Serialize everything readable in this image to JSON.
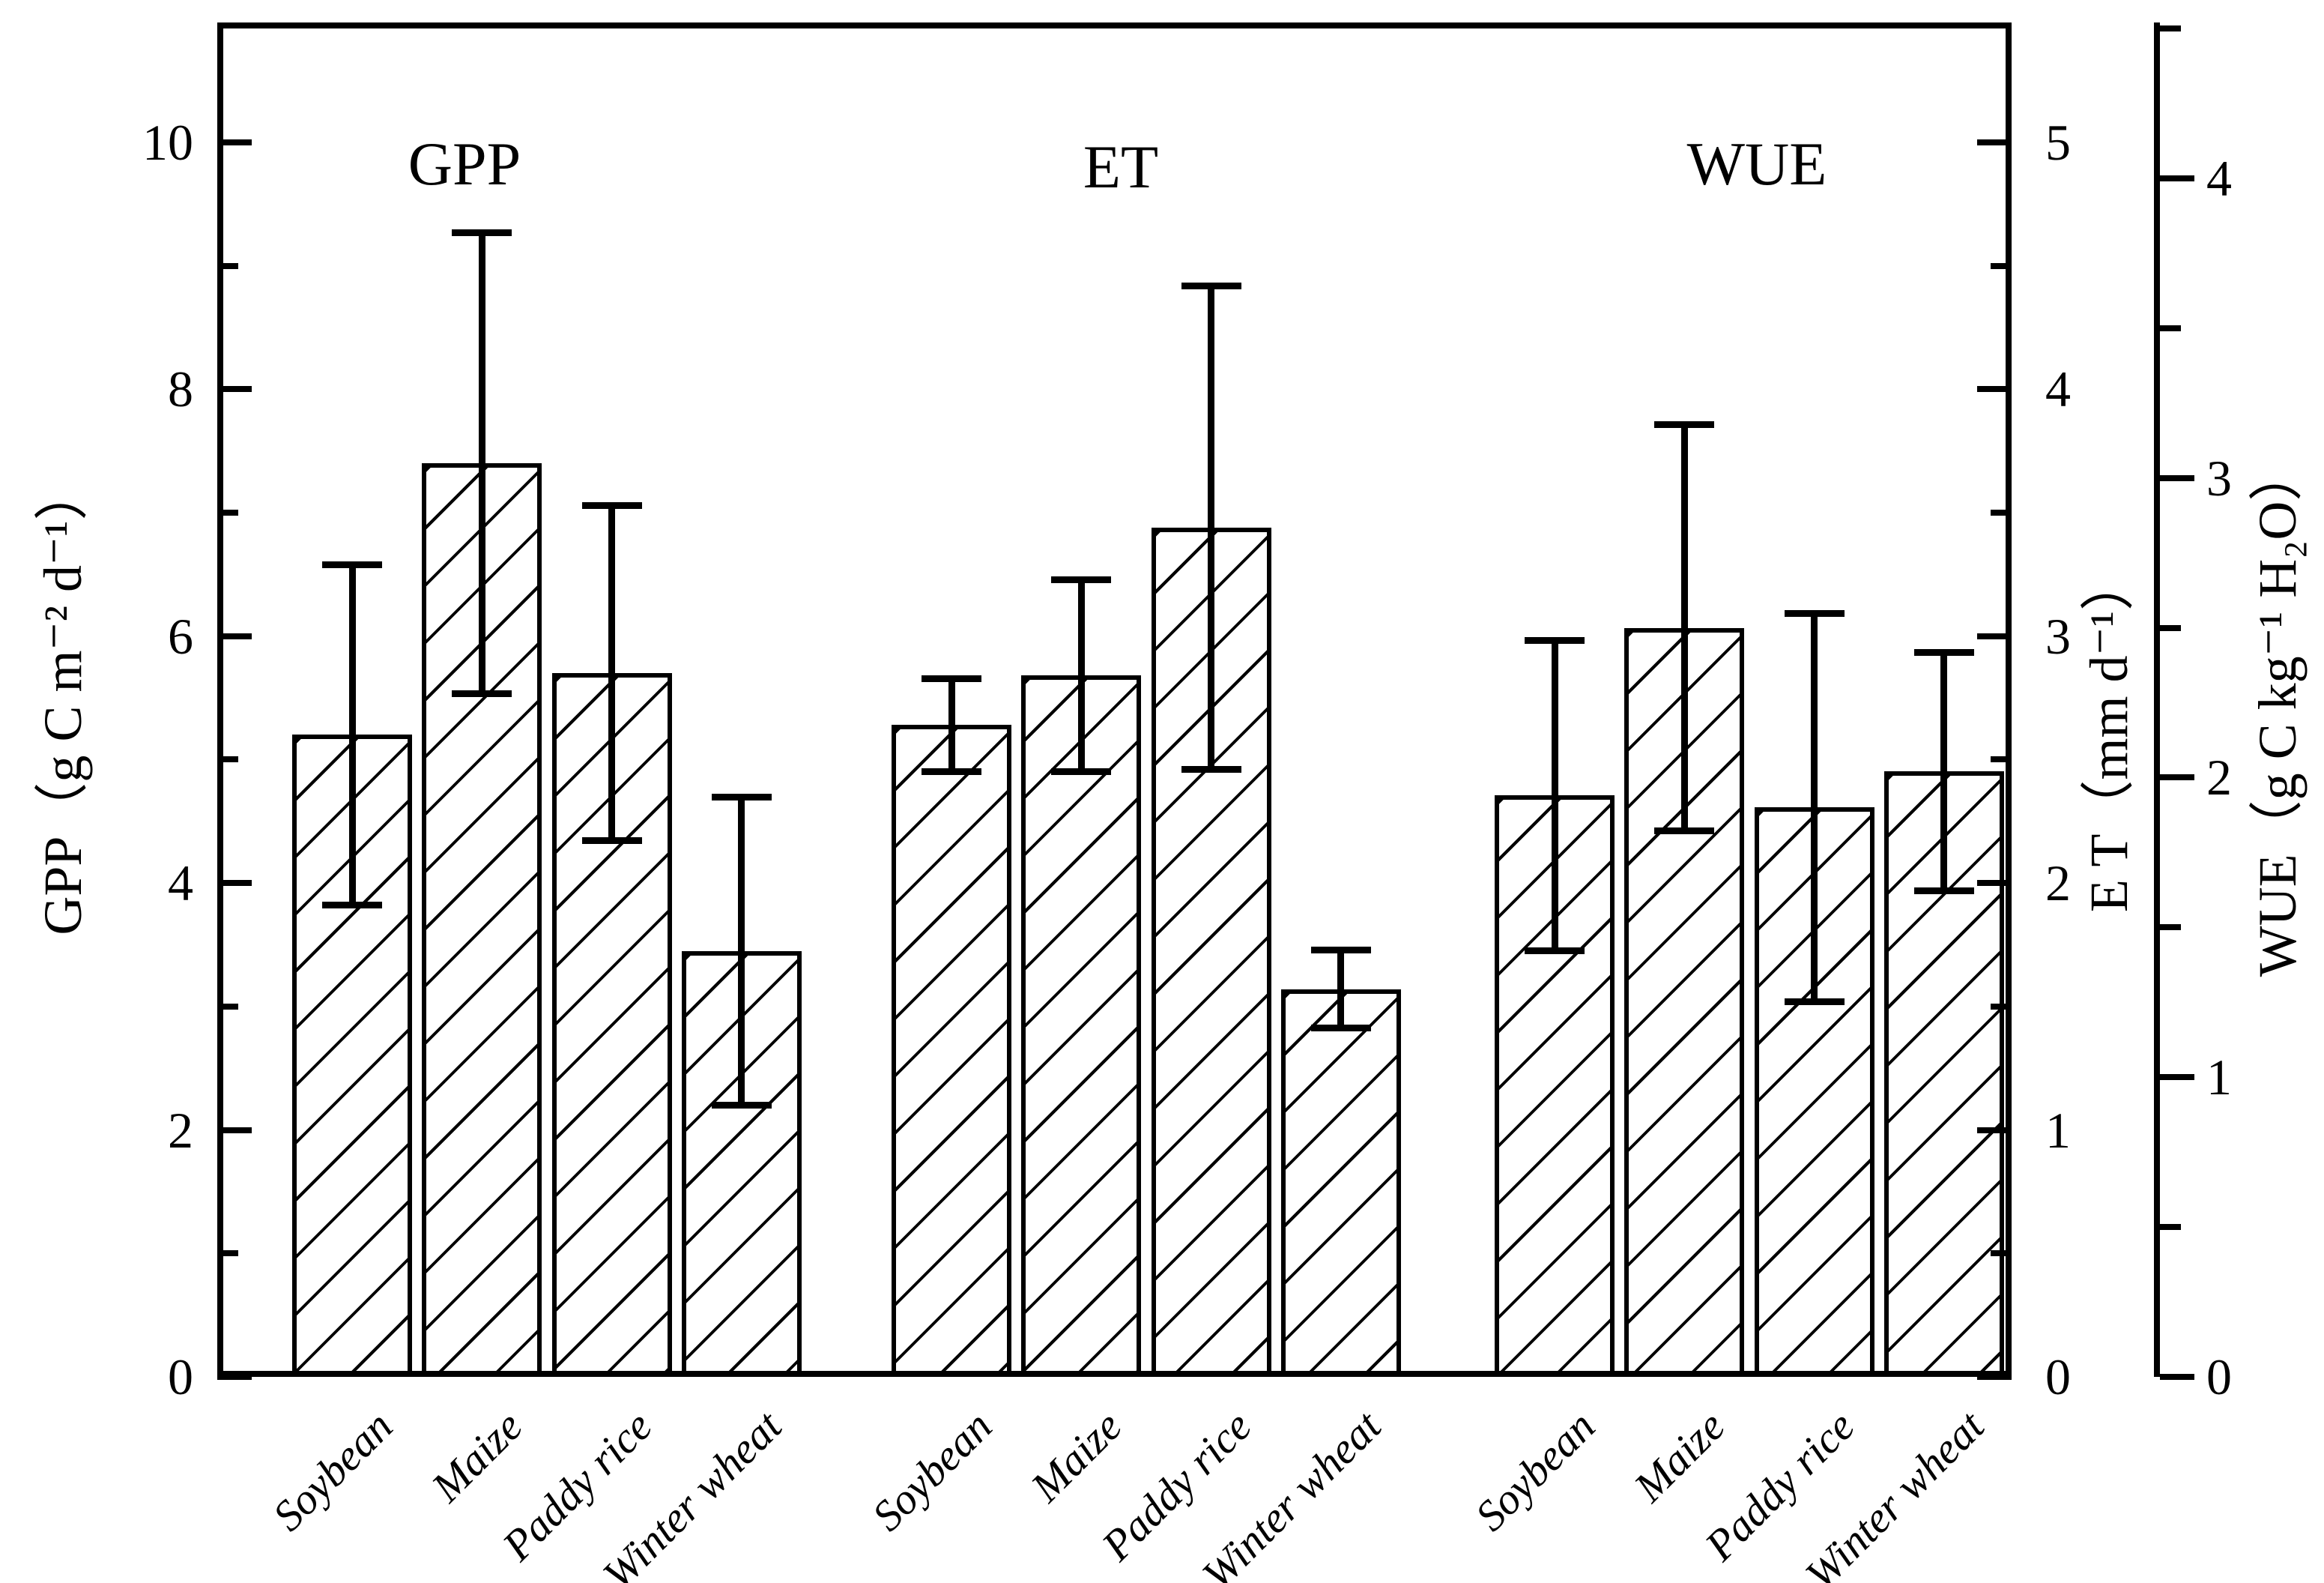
{
  "chart_data": {
    "type": "bar",
    "title": "",
    "categories": [
      "Soybean",
      "Maize",
      "Paddy rice",
      "Winter wheat"
    ],
    "groups": [
      {
        "name": "GPP",
        "axis": "left",
        "values": [
          5.2,
          7.4,
          5.7,
          3.45
        ],
        "errors": [
          1.38,
          1.87,
          1.36,
          1.25
        ]
      },
      {
        "name": "ET",
        "axis": "right_inner",
        "values": [
          2.64,
          2.84,
          3.44,
          1.57
        ],
        "errors": [
          0.19,
          0.39,
          0.98,
          0.16
        ]
      },
      {
        "name": "WUE",
        "axis": "right_outer",
        "values": [
          1.94,
          2.5,
          1.9,
          2.02
        ],
        "errors": [
          0.52,
          0.68,
          0.65,
          0.4
        ]
      }
    ],
    "axes": {
      "left": {
        "label": "GPP（g C m⁻² d⁻¹）",
        "min": 0,
        "max": 10.97,
        "major_ticks": [
          0,
          2,
          4,
          6,
          8,
          10
        ],
        "tick_labels": [
          "0",
          "2",
          "4",
          "6",
          "8",
          "10"
        ],
        "minor_ticks": [
          1,
          3,
          5,
          7,
          9
        ]
      },
      "right_inner": {
        "label": "E T（mm d⁻¹）",
        "min": 0,
        "max": 5.485,
        "major_ticks": [
          0,
          1,
          2,
          3,
          4,
          5
        ],
        "tick_labels": [
          "0",
          "1",
          "2",
          "3",
          "4",
          "5"
        ],
        "minor_ticks": [
          0.5,
          1.5,
          2.5,
          3.5,
          4.5
        ]
      },
      "right_outer": {
        "label": "WUE（g C kg⁻¹ H₂O）",
        "min": 0,
        "max": 4.52,
        "major_ticks": [
          0,
          1,
          2,
          3,
          4
        ],
        "tick_labels": [
          "0",
          "1",
          "2",
          "3",
          "4"
        ],
        "minor_ticks": [
          0.5,
          1.5,
          2.5,
          3.5,
          4.5
        ]
      }
    },
    "legend": null,
    "grid": false,
    "bar_style": {
      "fill": "#ffffff",
      "hatch": "diagonal-forward-slash",
      "line_color": "#000000"
    }
  }
}
